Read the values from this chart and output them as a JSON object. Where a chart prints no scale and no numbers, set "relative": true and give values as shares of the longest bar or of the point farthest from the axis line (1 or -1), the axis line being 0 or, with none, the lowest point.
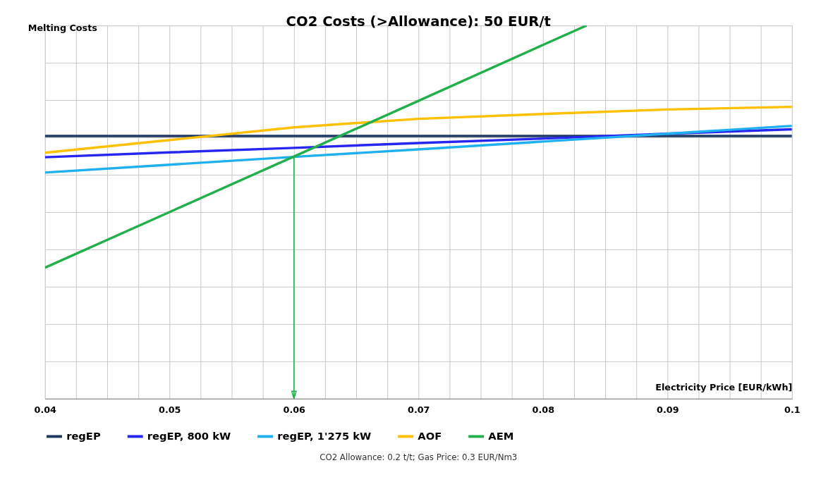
{
  "chart_data": {
    "type": "line",
    "title": "CO2 Costs (>Allowance): 50 EUR/t",
    "ylabel": "Melting Costs",
    "xlabel": "Electricity Price [EUR/kWh]",
    "relative": true,
    "x": [
      0.04,
      0.05,
      0.06,
      0.07,
      0.08,
      0.09,
      0.1
    ],
    "series": [
      {
        "name": "regEP",
        "color": "#1f3864",
        "values": [
          0.704,
          0.704,
          0.704,
          0.704,
          0.704,
          0.704,
          0.704
        ]
      },
      {
        "name": "regEP, 800 kW",
        "color": "#2626f0",
        "values": [
          0.647,
          0.66,
          0.672,
          0.685,
          0.697,
          0.71,
          0.722
        ]
      },
      {
        "name": "regEP, 1'275 kW",
        "color": "#1fb0f0",
        "values": [
          0.606,
          0.627,
          0.648,
          0.668,
          0.689,
          0.71,
          0.731
        ]
      },
      {
        "name": "AOF",
        "color": "#ffc000",
        "values": [
          0.659,
          0.693,
          0.727,
          0.75,
          0.763,
          0.775,
          0.782
        ]
      },
      {
        "name": "AEM",
        "color": "#21b04b",
        "x": [
          0.04,
          0.05,
          0.06,
          0.07,
          0.08,
          0.0835
        ],
        "values": [
          0.351,
          0.5,
          0.649,
          0.798,
          0.948,
          1.0
        ]
      }
    ],
    "xlim": [
      0.04,
      0.1
    ],
    "xticks": [
      0.04,
      {
        "value": 0.0425,
        "label": null
      },
      {
        "value": 0.045,
        "label": null
      },
      {
        "value": 0.0475,
        "label": null
      },
      0.05,
      {
        "value": 0.0525,
        "label": null
      },
      {
        "value": 0.055,
        "label": null
      },
      {
        "value": 0.0575,
        "label": null
      },
      0.06,
      {
        "value": 0.0625,
        "label": null
      },
      {
        "value": 0.065,
        "label": null
      },
      {
        "value": 0.0675,
        "label": null
      },
      0.07,
      {
        "value": 0.0725,
        "label": null
      },
      {
        "value": 0.075,
        "label": null
      },
      {
        "value": 0.0775,
        "label": null
      },
      0.08,
      {
        "value": 0.0825,
        "label": null
      },
      {
        "value": 0.085,
        "label": null
      },
      {
        "value": 0.0875,
        "label": null
      },
      0.09,
      {
        "value": 0.0925,
        "label": null
      },
      {
        "value": 0.095,
        "label": null
      },
      {
        "value": 0.0975,
        "label": null
      },
      0.1
    ],
    "ref_lines": [
      {
        "axis": "x",
        "value": 0.06,
        "color": "#21b04b"
      }
    ],
    "grid": true,
    "legend": "bottom",
    "line_style": "solid",
    "marker": "none",
    "annotations": [
      "CO2 Allowance: 0.2 t/t; Gas Price: 0.3 EUR/Nm3"
    ]
  }
}
